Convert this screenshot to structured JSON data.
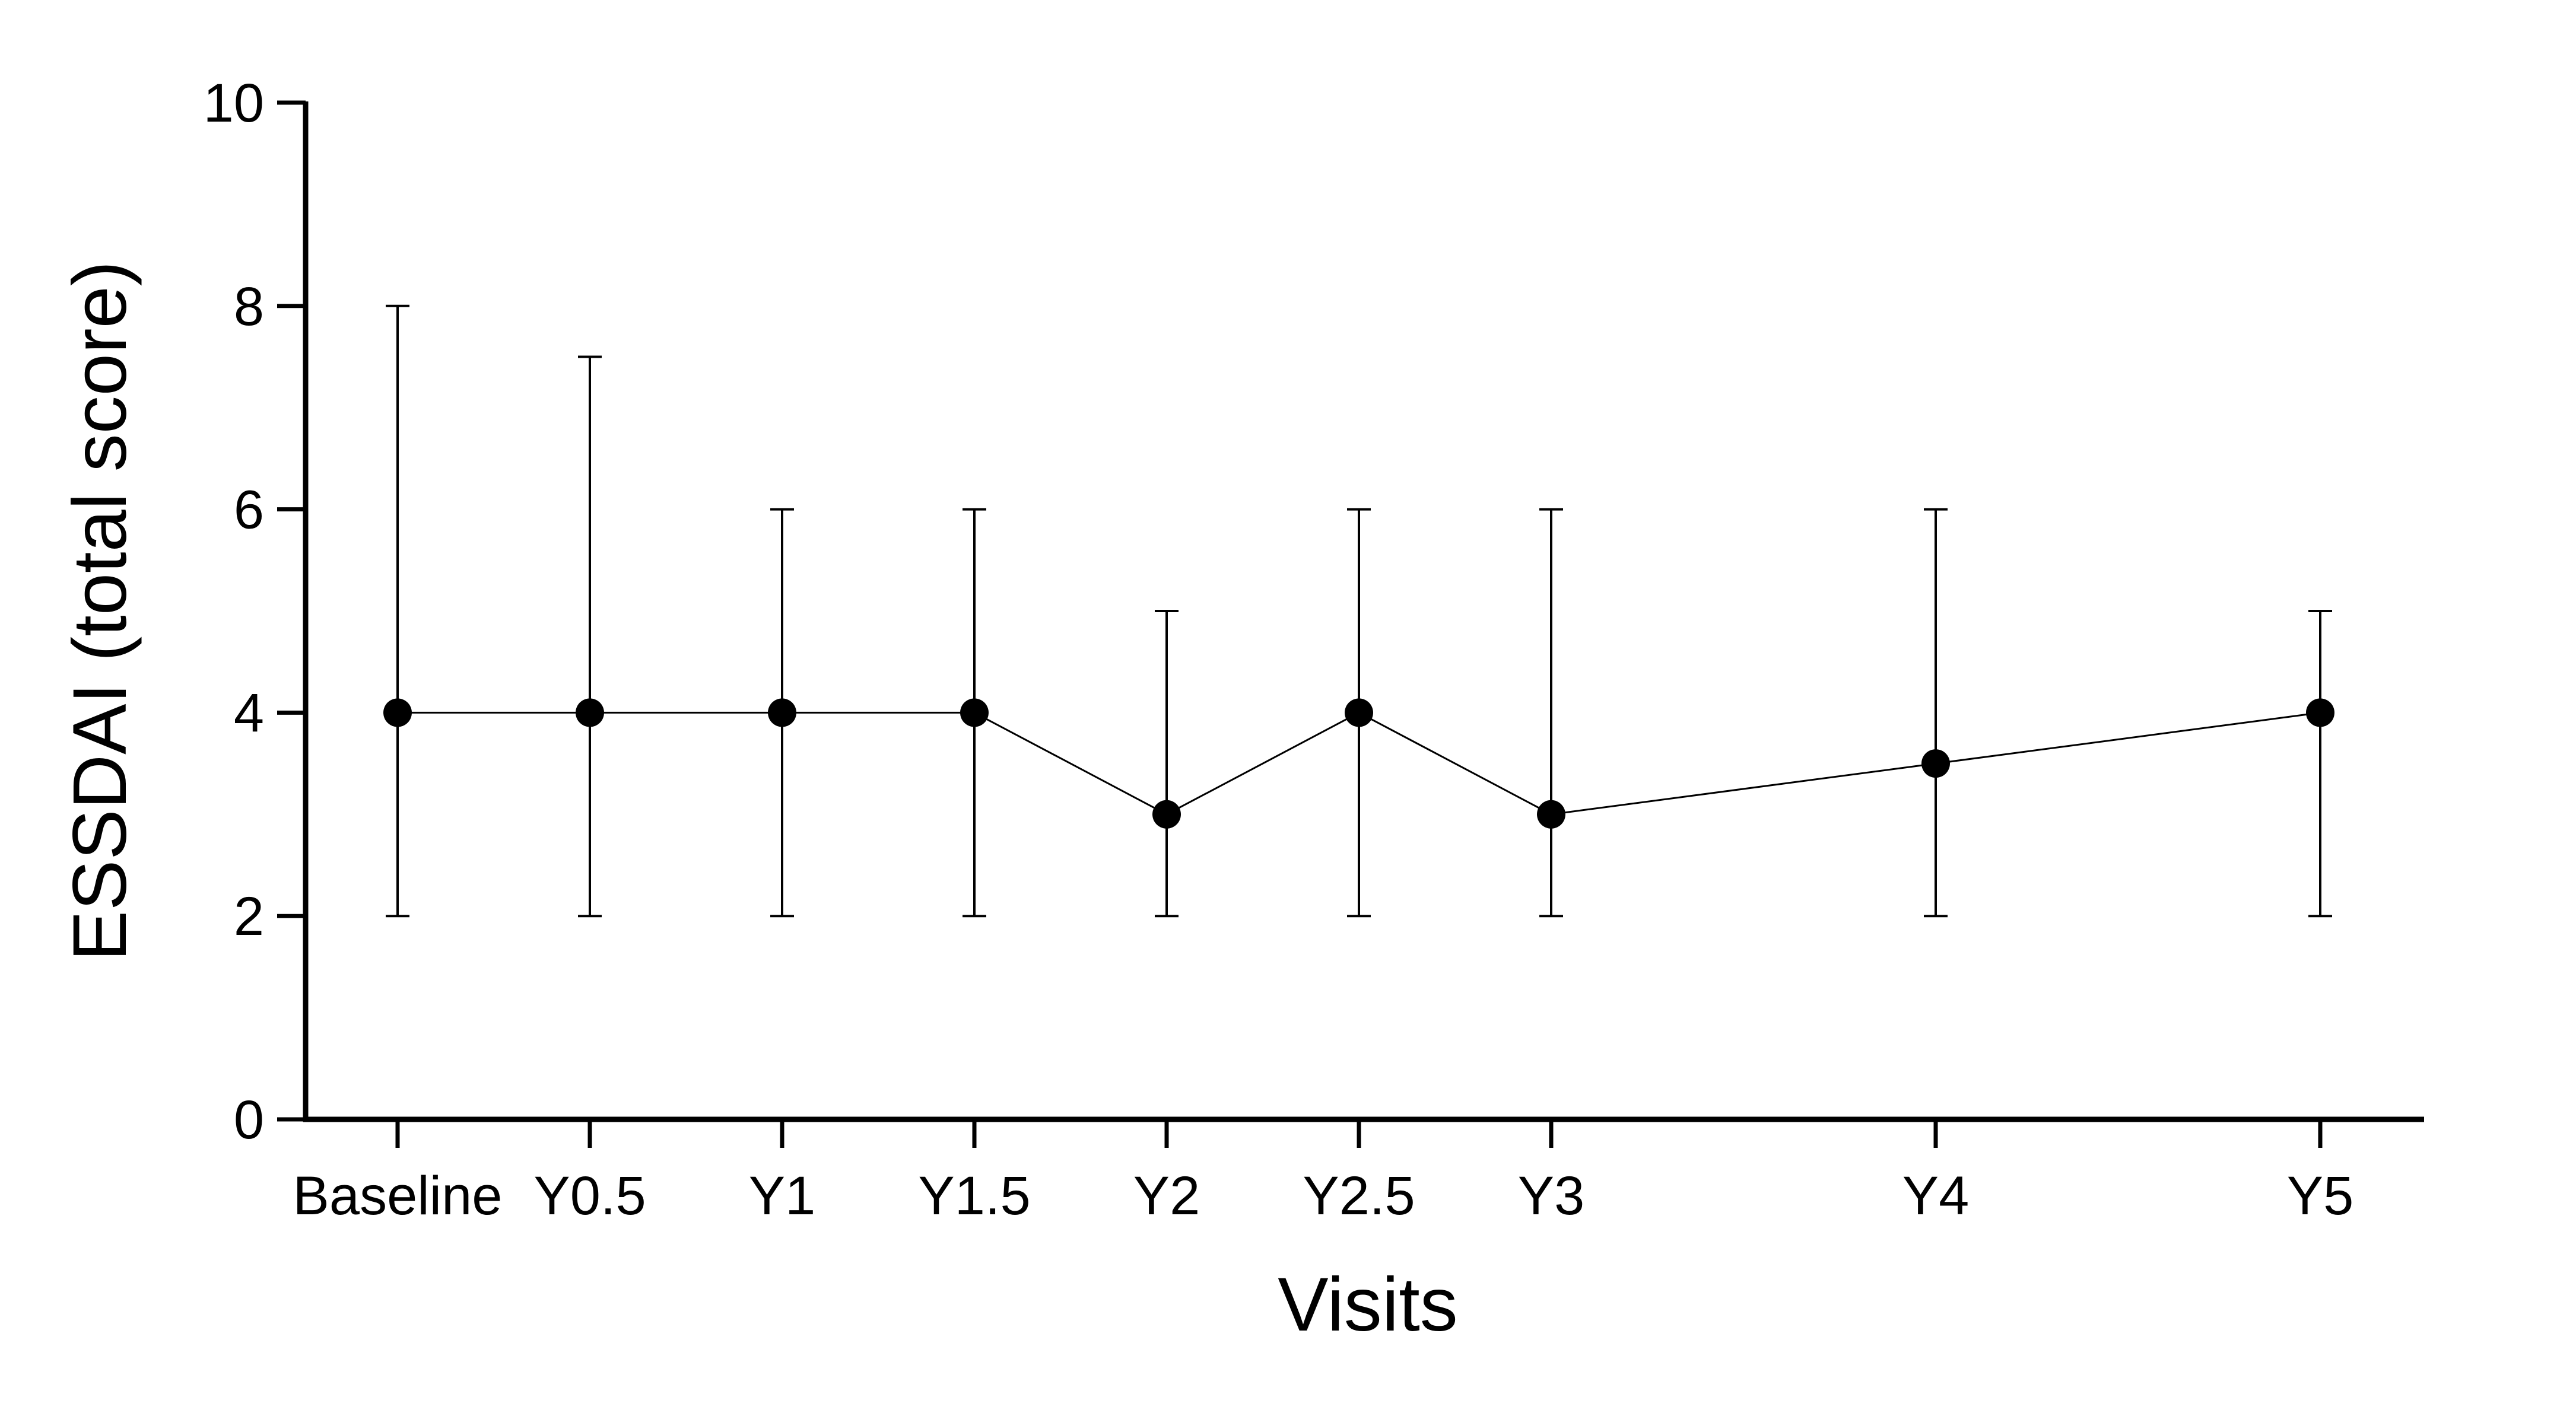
{
  "chart_data": {
    "type": "line",
    "title": "",
    "xlabel": "Visits",
    "ylabel": "ESSDAI (total score)",
    "ylim": [
      0,
      10
    ],
    "yticks": [
      0,
      2,
      4,
      6,
      8,
      10
    ],
    "xlim": [
      -0.5,
      10.5
    ],
    "grid": false,
    "legend": "none",
    "categories": [
      "Baseline",
      "Y0.5",
      "Y1",
      "Y1.5",
      "Y2",
      "Y2.5",
      "Y3",
      "Y4",
      "Y5"
    ],
    "x": [
      0,
      0.5,
      1,
      1.5,
      2,
      2.5,
      3,
      4,
      5
    ],
    "series": [
      {
        "values": [
          4,
          4,
          4,
          4,
          3,
          4,
          3,
          3.5,
          4
        ],
        "error_low": [
          2,
          2,
          2,
          2,
          2,
          2,
          2,
          2,
          2
        ],
        "error_high": [
          8,
          7.5,
          6,
          6,
          5,
          6,
          6,
          6,
          5
        ]
      }
    ],
    "colors": {
      "line": "#000000",
      "marker": "#000000",
      "axis": "#000000"
    }
  }
}
